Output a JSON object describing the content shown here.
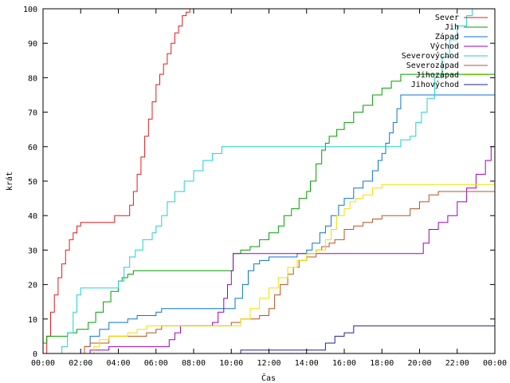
{
  "chart_data": {
    "type": "line",
    "title": "",
    "xlabel": "Čas",
    "ylabel": "krát",
    "xlim": [
      0,
      24
    ],
    "ylim": [
      0,
      100
    ],
    "x_unit": "hours",
    "x_ticks": [
      "00:00",
      "02:00",
      "04:00",
      "06:00",
      "08:00",
      "10:00",
      "12:00",
      "14:00",
      "16:00",
      "18:00",
      "20:00",
      "22:00",
      "00:00"
    ],
    "y_ticks": [
      "0",
      "10",
      "20",
      "30",
      "40",
      "50",
      "60",
      "70",
      "80",
      "90",
      "100"
    ],
    "grid": false,
    "legend_position": "top-right",
    "series": [
      {
        "name": "Sever",
        "color": "#e41a1c",
        "points": [
          [
            0,
            0
          ],
          [
            0.2,
            5
          ],
          [
            0.4,
            12
          ],
          [
            0.6,
            17
          ],
          [
            0.8,
            22
          ],
          [
            1.0,
            26
          ],
          [
            1.2,
            30
          ],
          [
            1.4,
            33
          ],
          [
            1.6,
            35
          ],
          [
            1.8,
            37
          ],
          [
            2.0,
            38
          ],
          [
            3.7,
            38
          ],
          [
            3.8,
            40
          ],
          [
            4.4,
            40
          ],
          [
            4.6,
            43
          ],
          [
            4.8,
            47
          ],
          [
            5.0,
            52
          ],
          [
            5.2,
            57
          ],
          [
            5.4,
            63
          ],
          [
            5.6,
            68
          ],
          [
            5.8,
            73
          ],
          [
            6.0,
            78
          ],
          [
            6.2,
            81
          ],
          [
            6.4,
            84
          ],
          [
            6.6,
            87
          ],
          [
            6.8,
            90
          ],
          [
            7.0,
            93
          ],
          [
            7.2,
            95
          ],
          [
            7.4,
            98
          ],
          [
            7.6,
            99
          ],
          [
            7.8,
            100
          ]
        ]
      },
      {
        "name": "Jih",
        "color": "#00a000",
        "points": [
          [
            0,
            3
          ],
          [
            0.2,
            5
          ],
          [
            1.1,
            5
          ],
          [
            1.3,
            6
          ],
          [
            1.8,
            7
          ],
          [
            2.4,
            9
          ],
          [
            2.8,
            12
          ],
          [
            3.2,
            15
          ],
          [
            3.6,
            18
          ],
          [
            4.0,
            21
          ],
          [
            4.2,
            22
          ],
          [
            4.5,
            23
          ],
          [
            4.8,
            24
          ],
          [
            10.0,
            24
          ],
          [
            10.1,
            29
          ],
          [
            10.5,
            30
          ],
          [
            11.0,
            31
          ],
          [
            11.5,
            33
          ],
          [
            12.0,
            35
          ],
          [
            12.5,
            37
          ],
          [
            12.8,
            40
          ],
          [
            13.2,
            42
          ],
          [
            13.6,
            45
          ],
          [
            14.0,
            47
          ],
          [
            14.2,
            50
          ],
          [
            14.5,
            55
          ],
          [
            14.8,
            59
          ],
          [
            15.0,
            61
          ],
          [
            15.2,
            63
          ],
          [
            15.6,
            65
          ],
          [
            16.0,
            67
          ],
          [
            16.5,
            70
          ],
          [
            17.0,
            72
          ],
          [
            17.5,
            75
          ],
          [
            18.0,
            77
          ],
          [
            18.5,
            79
          ],
          [
            19.0,
            81
          ],
          [
            24,
            81
          ]
        ]
      },
      {
        "name": "Západ",
        "color": "#0a74d6",
        "points": [
          [
            0,
            0
          ],
          [
            2.2,
            2
          ],
          [
            2.5,
            5
          ],
          [
            3.0,
            7
          ],
          [
            3.5,
            9
          ],
          [
            4.5,
            10
          ],
          [
            5.0,
            11
          ],
          [
            6.0,
            12
          ],
          [
            6.3,
            13
          ],
          [
            9.8,
            13
          ],
          [
            10.2,
            16
          ],
          [
            10.6,
            20
          ],
          [
            10.9,
            24
          ],
          [
            11.2,
            26
          ],
          [
            11.5,
            27
          ],
          [
            12.0,
            28
          ],
          [
            13.5,
            29
          ],
          [
            14.0,
            30
          ],
          [
            14.3,
            32
          ],
          [
            14.7,
            35
          ],
          [
            15.0,
            37
          ],
          [
            15.3,
            40
          ],
          [
            15.7,
            43
          ],
          [
            16.0,
            45
          ],
          [
            16.5,
            48
          ],
          [
            17.0,
            50
          ],
          [
            17.5,
            53
          ],
          [
            17.8,
            56
          ],
          [
            18.0,
            58
          ],
          [
            18.2,
            61
          ],
          [
            18.4,
            64
          ],
          [
            18.6,
            67
          ],
          [
            18.8,
            71
          ],
          [
            19.0,
            75
          ],
          [
            24,
            75
          ]
        ]
      },
      {
        "name": "Východ",
        "color": "#a000c0",
        "points": [
          [
            0,
            0
          ],
          [
            2.3,
            0
          ],
          [
            2.5,
            1
          ],
          [
            3.5,
            2
          ],
          [
            6.5,
            2
          ],
          [
            6.7,
            4
          ],
          [
            7.0,
            6
          ],
          [
            7.3,
            8
          ],
          [
            9.0,
            9
          ],
          [
            9.3,
            12
          ],
          [
            9.6,
            16
          ],
          [
            9.8,
            20
          ],
          [
            10.0,
            24
          ],
          [
            10.1,
            29
          ],
          [
            20.0,
            29
          ],
          [
            20.2,
            32
          ],
          [
            20.5,
            36
          ],
          [
            21.0,
            38
          ],
          [
            21.5,
            40
          ],
          [
            22.0,
            44
          ],
          [
            22.5,
            48
          ],
          [
            23.0,
            52
          ],
          [
            23.5,
            56
          ],
          [
            23.8,
            60
          ],
          [
            24,
            61
          ]
        ]
      },
      {
        "name": "Severovýchod",
        "color": "#20d0d0",
        "points": [
          [
            0,
            0
          ],
          [
            0.8,
            0
          ],
          [
            1.0,
            2
          ],
          [
            1.3,
            6
          ],
          [
            1.6,
            12
          ],
          [
            1.8,
            17
          ],
          [
            2.0,
            19
          ],
          [
            3.8,
            19
          ],
          [
            4.0,
            21
          ],
          [
            4.3,
            25
          ],
          [
            4.6,
            28
          ],
          [
            4.9,
            30
          ],
          [
            5.3,
            33
          ],
          [
            5.8,
            35
          ],
          [
            6.0,
            37
          ],
          [
            6.3,
            40
          ],
          [
            6.6,
            44
          ],
          [
            7.0,
            47
          ],
          [
            7.5,
            50
          ],
          [
            8.0,
            53
          ],
          [
            8.5,
            56
          ],
          [
            9.0,
            58
          ],
          [
            9.5,
            60
          ],
          [
            18.8,
            60
          ],
          [
            19.0,
            62
          ],
          [
            19.5,
            63
          ],
          [
            19.8,
            67
          ],
          [
            20.1,
            70
          ],
          [
            20.4,
            74
          ],
          [
            20.8,
            80
          ],
          [
            21.2,
            86
          ],
          [
            21.6,
            91
          ],
          [
            22.0,
            95
          ],
          [
            22.5,
            98
          ],
          [
            22.8,
            100
          ]
        ]
      },
      {
        "name": "Severozápad",
        "color": "#c05020",
        "points": [
          [
            0,
            0
          ],
          [
            2.2,
            2
          ],
          [
            2.5,
            3
          ],
          [
            3.5,
            5
          ],
          [
            5.5,
            6
          ],
          [
            6.0,
            7
          ],
          [
            6.3,
            8
          ],
          [
            9.8,
            8
          ],
          [
            10.0,
            9
          ],
          [
            10.5,
            10
          ],
          [
            11.5,
            11
          ],
          [
            12.0,
            13
          ],
          [
            12.3,
            17
          ],
          [
            12.6,
            20
          ],
          [
            13.0,
            23
          ],
          [
            13.3,
            25
          ],
          [
            13.6,
            27
          ],
          [
            14.0,
            28
          ],
          [
            14.5,
            30
          ],
          [
            14.8,
            31
          ],
          [
            15.2,
            32
          ],
          [
            15.5,
            33
          ],
          [
            16.0,
            36
          ],
          [
            16.5,
            37
          ],
          [
            17.0,
            38
          ],
          [
            17.5,
            39
          ],
          [
            18.0,
            40
          ],
          [
            19.0,
            40
          ],
          [
            19.5,
            42
          ],
          [
            20.0,
            44
          ],
          [
            20.5,
            46
          ],
          [
            21.0,
            47
          ],
          [
            24,
            47
          ]
        ]
      },
      {
        "name": "Jihozápad",
        "color": "#f0e000",
        "points": [
          [
            0,
            0
          ],
          [
            2.5,
            0
          ],
          [
            2.7,
            2
          ],
          [
            3.0,
            4
          ],
          [
            3.5,
            5
          ],
          [
            4.5,
            6
          ],
          [
            5.0,
            7
          ],
          [
            5.5,
            8
          ],
          [
            10.0,
            8
          ],
          [
            10.5,
            10
          ],
          [
            11.0,
            13
          ],
          [
            11.5,
            16
          ],
          [
            12.0,
            19
          ],
          [
            12.5,
            22
          ],
          [
            13.0,
            25
          ],
          [
            13.5,
            27
          ],
          [
            14.0,
            29
          ],
          [
            14.5,
            30
          ],
          [
            15.0,
            33
          ],
          [
            15.3,
            36
          ],
          [
            15.6,
            40
          ],
          [
            16.0,
            42
          ],
          [
            16.3,
            44
          ],
          [
            16.6,
            45
          ],
          [
            17.0,
            46
          ],
          [
            17.5,
            48
          ],
          [
            18.0,
            49
          ],
          [
            24,
            49
          ]
        ]
      },
      {
        "name": "Jihovýchod",
        "color": "#2020a0",
        "points": [
          [
            0,
            0
          ],
          [
            10.4,
            0
          ],
          [
            10.5,
            1
          ],
          [
            14.8,
            1
          ],
          [
            15.0,
            3
          ],
          [
            15.5,
            5
          ],
          [
            16.0,
            6
          ],
          [
            16.5,
            8
          ],
          [
            24,
            8
          ]
        ]
      }
    ]
  }
}
